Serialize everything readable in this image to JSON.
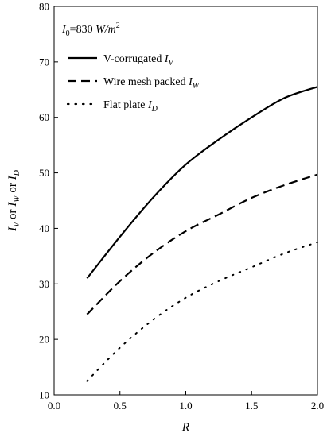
{
  "chart_data": {
    "type": "line",
    "xlabel": "R",
    "ylabel": {
      "parts": [
        {
          "t": "I",
          "s": "V"
        },
        {
          "t": " or ",
          "s": ""
        },
        {
          "t": "I",
          "s": "W"
        },
        {
          "t": " or ",
          "s": ""
        },
        {
          "t": "I",
          "s": "D"
        }
      ]
    },
    "xlim": [
      0.0,
      2.0
    ],
    "ylim": [
      10,
      80
    ],
    "x_ticks": [
      "0.0",
      "0.5",
      "1.0",
      "1.5",
      "2.0"
    ],
    "y_ticks": [
      "10",
      "20",
      "30",
      "40",
      "50",
      "60",
      "70",
      "80"
    ],
    "grid": false,
    "legend_position": "top-left",
    "annotation": {
      "prefix": "I",
      "sub": "0",
      "value": "=830 ",
      "unit": "W/m",
      "sup": "2"
    },
    "series": [
      {
        "name": "V-corrugated",
        "name_symbol": "I",
        "name_sub": "V",
        "style": "solid",
        "x": [
          0.25,
          0.5,
          0.75,
          1.0,
          1.25,
          1.5,
          1.75,
          2.0
        ],
        "y": [
          31,
          38.5,
          45.5,
          51.5,
          56,
          60,
          63.5,
          65.5
        ]
      },
      {
        "name": "Wire mesh packed",
        "name_symbol": "I",
        "name_sub": "W",
        "style": "dashed",
        "x": [
          0.25,
          0.5,
          0.75,
          1.0,
          1.25,
          1.5,
          1.75,
          2.0
        ],
        "y": [
          24.5,
          30.5,
          35.5,
          39.5,
          42.5,
          45.5,
          47.8,
          49.7
        ]
      },
      {
        "name": "Flat plate",
        "name_symbol": "I",
        "name_sub": "D",
        "style": "dotted",
        "x": [
          0.25,
          0.5,
          0.75,
          1.0,
          1.25,
          1.5,
          1.75,
          2.0
        ],
        "y": [
          12.5,
          18.5,
          23.5,
          27.5,
          30.5,
          33,
          35.5,
          37.5
        ]
      }
    ]
  }
}
